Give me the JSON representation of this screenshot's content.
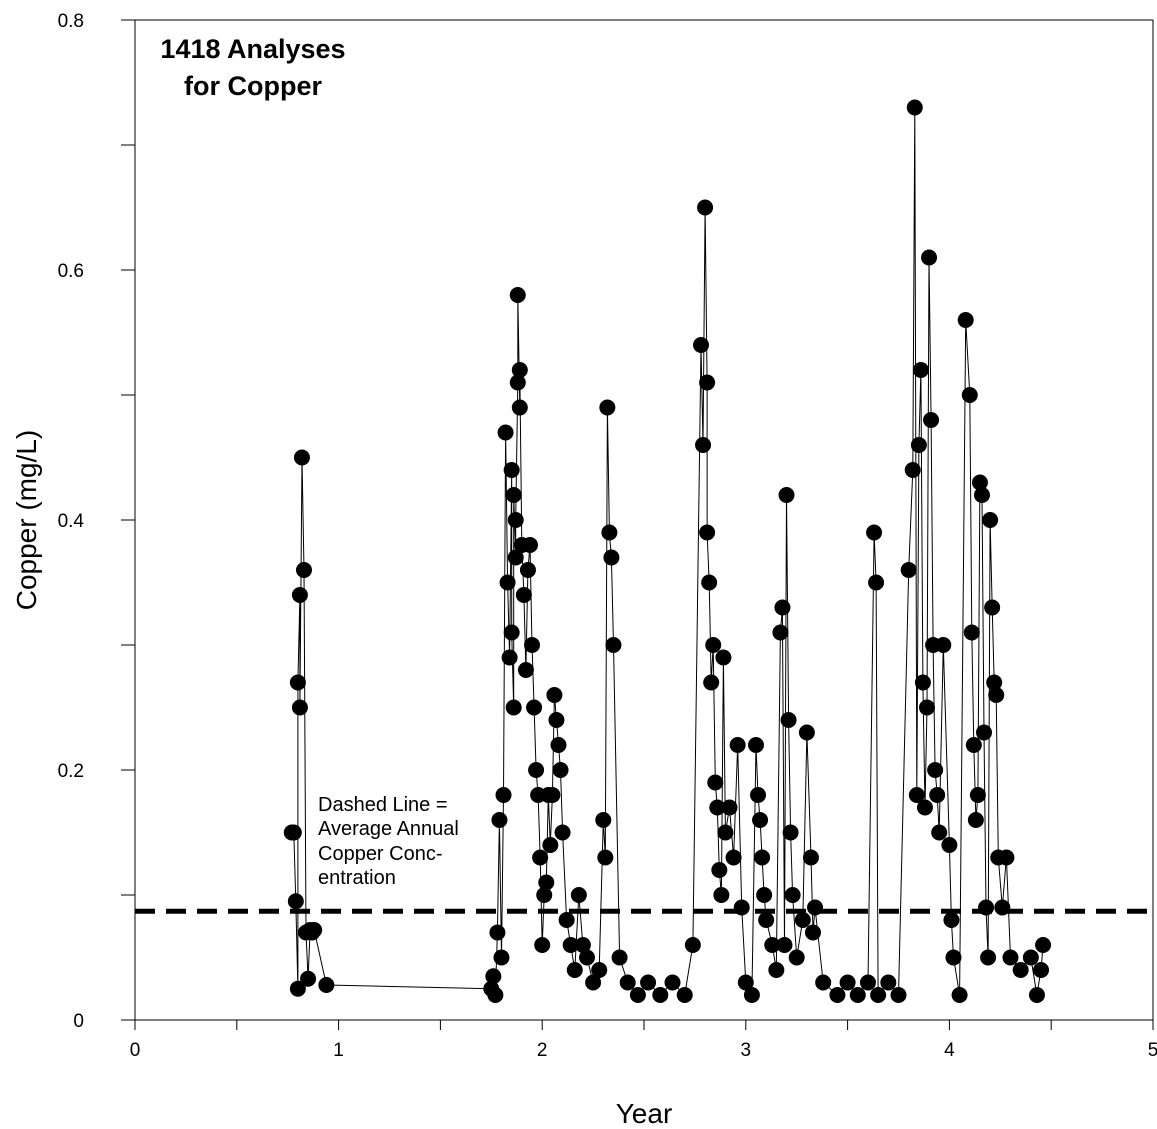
{
  "chart_data": {
    "type": "scatter",
    "title_lines": [
      "1418 Analyses",
      "for Copper"
    ],
    "xlabel": "Year",
    "ylabel": "Copper (mg/L)",
    "xlim": [
      0,
      5
    ],
    "ylim": [
      0,
      0.8
    ],
    "x_ticks": [
      "0",
      "1",
      "2",
      "3",
      "4",
      "5"
    ],
    "y_ticks": [
      "0",
      "0.2",
      "0.4",
      "0.6",
      "0.8"
    ],
    "note_lines": [
      "Dashed Line =",
      "Average Annual",
      "Copper Conc-",
      "entration"
    ],
    "average_line": 0.087,
    "series": [
      {
        "marker": "filled-circle",
        "connected": true,
        "x": [
          0.77,
          0.78,
          0.79,
          0.8,
          0.8,
          0.81,
          0.81,
          0.82,
          0.83,
          0.84,
          0.85,
          0.86,
          0.87,
          0.88,
          0.94,
          1.75,
          1.76,
          1.77,
          1.78,
          1.79,
          1.8,
          1.81,
          1.82,
          1.83,
          1.84,
          1.85,
          1.85,
          1.86,
          1.86,
          1.87,
          1.87,
          1.88,
          1.88,
          1.89,
          1.89,
          1.9,
          1.91,
          1.92,
          1.93,
          1.94,
          1.95,
          1.96,
          1.97,
          1.98,
          1.99,
          2.0,
          2.01,
          2.02,
          2.03,
          2.04,
          2.05,
          2.06,
          2.07,
          2.08,
          2.09,
          2.1,
          2.12,
          2.14,
          2.16,
          2.18,
          2.2,
          2.22,
          2.25,
          2.28,
          2.3,
          2.31,
          2.32,
          2.33,
          2.34,
          2.35,
          2.38,
          2.42,
          2.47,
          2.52,
          2.58,
          2.64,
          2.7,
          2.74,
          2.78,
          2.79,
          2.8,
          2.81,
          2.81,
          2.82,
          2.83,
          2.84,
          2.85,
          2.86,
          2.87,
          2.88,
          2.89,
          2.9,
          2.92,
          2.94,
          2.96,
          2.98,
          3.0,
          3.03,
          3.05,
          3.06,
          3.07,
          3.08,
          3.09,
          3.1,
          3.13,
          3.15,
          3.17,
          3.18,
          3.19,
          3.2,
          3.21,
          3.22,
          3.23,
          3.25,
          3.28,
          3.3,
          3.32,
          3.33,
          3.34,
          3.38,
          3.45,
          3.5,
          3.55,
          3.6,
          3.63,
          3.64,
          3.65,
          3.7,
          3.75,
          3.8,
          3.82,
          3.83,
          3.84,
          3.85,
          3.86,
          3.87,
          3.88,
          3.89,
          3.9,
          3.91,
          3.92,
          3.93,
          3.94,
          3.95,
          3.97,
          4.0,
          4.01,
          4.02,
          4.05,
          4.08,
          4.1,
          4.11,
          4.12,
          4.13,
          4.14,
          4.15,
          4.16,
          4.17,
          4.18,
          4.19,
          4.2,
          4.21,
          4.22,
          4.23,
          4.24,
          4.26,
          4.28,
          4.3,
          4.35,
          4.4,
          4.43,
          4.45,
          4.46
        ],
        "y": [
          0.15,
          0.15,
          0.095,
          0.025,
          0.27,
          0.34,
          0.25,
          0.45,
          0.36,
          0.07,
          0.033,
          0.072,
          0.07,
          0.072,
          0.028,
          0.025,
          0.035,
          0.02,
          0.07,
          0.16,
          0.05,
          0.18,
          0.47,
          0.35,
          0.29,
          0.44,
          0.31,
          0.25,
          0.42,
          0.37,
          0.4,
          0.51,
          0.58,
          0.49,
          0.52,
          0.38,
          0.34,
          0.28,
          0.36,
          0.38,
          0.3,
          0.25,
          0.2,
          0.18,
          0.13,
          0.06,
          0.1,
          0.11,
          0.18,
          0.14,
          0.18,
          0.26,
          0.24,
          0.22,
          0.2,
          0.15,
          0.08,
          0.06,
          0.04,
          0.1,
          0.06,
          0.05,
          0.03,
          0.04,
          0.16,
          0.13,
          0.49,
          0.39,
          0.37,
          0.3,
          0.05,
          0.03,
          0.02,
          0.03,
          0.02,
          0.03,
          0.02,
          0.06,
          0.54,
          0.46,
          0.65,
          0.51,
          0.39,
          0.35,
          0.27,
          0.3,
          0.19,
          0.17,
          0.12,
          0.1,
          0.29,
          0.15,
          0.17,
          0.13,
          0.22,
          0.09,
          0.03,
          0.02,
          0.22,
          0.18,
          0.16,
          0.13,
          0.1,
          0.08,
          0.06,
          0.04,
          0.31,
          0.33,
          0.06,
          0.42,
          0.24,
          0.15,
          0.1,
          0.05,
          0.08,
          0.23,
          0.13,
          0.07,
          0.09,
          0.03,
          0.02,
          0.03,
          0.02,
          0.03,
          0.39,
          0.35,
          0.02,
          0.03,
          0.02,
          0.36,
          0.44,
          0.73,
          0.18,
          0.46,
          0.52,
          0.27,
          0.17,
          0.25,
          0.61,
          0.48,
          0.3,
          0.2,
          0.18,
          0.15,
          0.3,
          0.14,
          0.08,
          0.05,
          0.02,
          0.56,
          0.5,
          0.31,
          0.22,
          0.16,
          0.18,
          0.43,
          0.42,
          0.23,
          0.09,
          0.05,
          0.4,
          0.33,
          0.27,
          0.26,
          0.13,
          0.09,
          0.13,
          0.05,
          0.04,
          0.05,
          0.02,
          0.04,
          0.06
        ]
      }
    ]
  }
}
